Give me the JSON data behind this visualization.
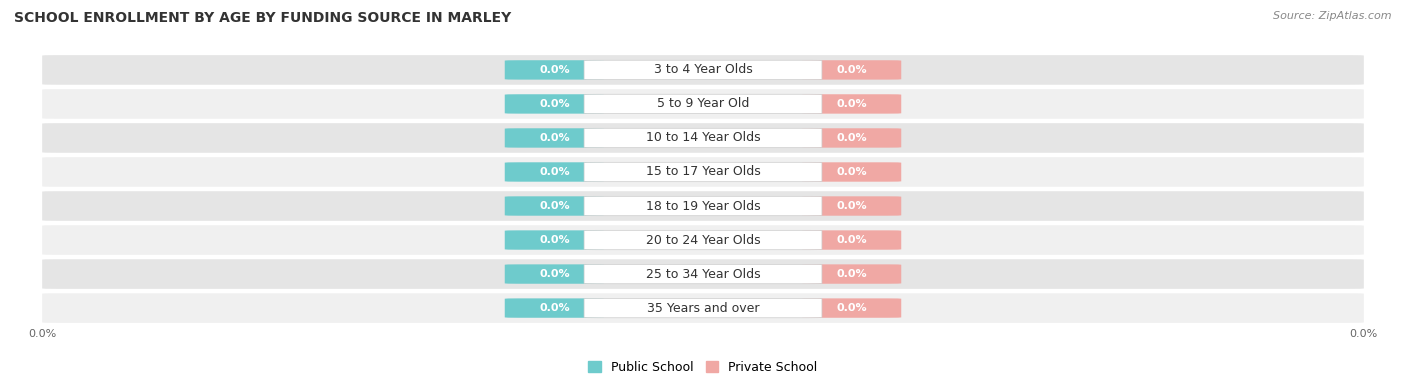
{
  "title": "SCHOOL ENROLLMENT BY AGE BY FUNDING SOURCE IN MARLEY",
  "source_text": "Source: ZipAtlas.com",
  "categories": [
    "3 to 4 Year Olds",
    "5 to 9 Year Old",
    "10 to 14 Year Olds",
    "15 to 17 Year Olds",
    "18 to 19 Year Olds",
    "20 to 24 Year Olds",
    "25 to 34 Year Olds",
    "35 Years and over"
  ],
  "public_values": [
    0.0,
    0.0,
    0.0,
    0.0,
    0.0,
    0.0,
    0.0,
    0.0
  ],
  "private_values": [
    0.0,
    0.0,
    0.0,
    0.0,
    0.0,
    0.0,
    0.0,
    0.0
  ],
  "public_color": "#6ecbcc",
  "private_color": "#f0a8a4",
  "row_bg_light": "#f0f0f0",
  "row_bg_dark": "#e5e5e5",
  "bar_bg_color": "#ebebeb",
  "label_bg_color": "#ffffff",
  "title_fontsize": 10,
  "source_fontsize": 8,
  "bar_label_fontsize": 8,
  "category_fontsize": 9,
  "legend_fontsize": 9,
  "legend_public": "Public School",
  "legend_private": "Private School",
  "x_tick_label_left": "0.0%",
  "x_tick_label_right": "0.0%"
}
